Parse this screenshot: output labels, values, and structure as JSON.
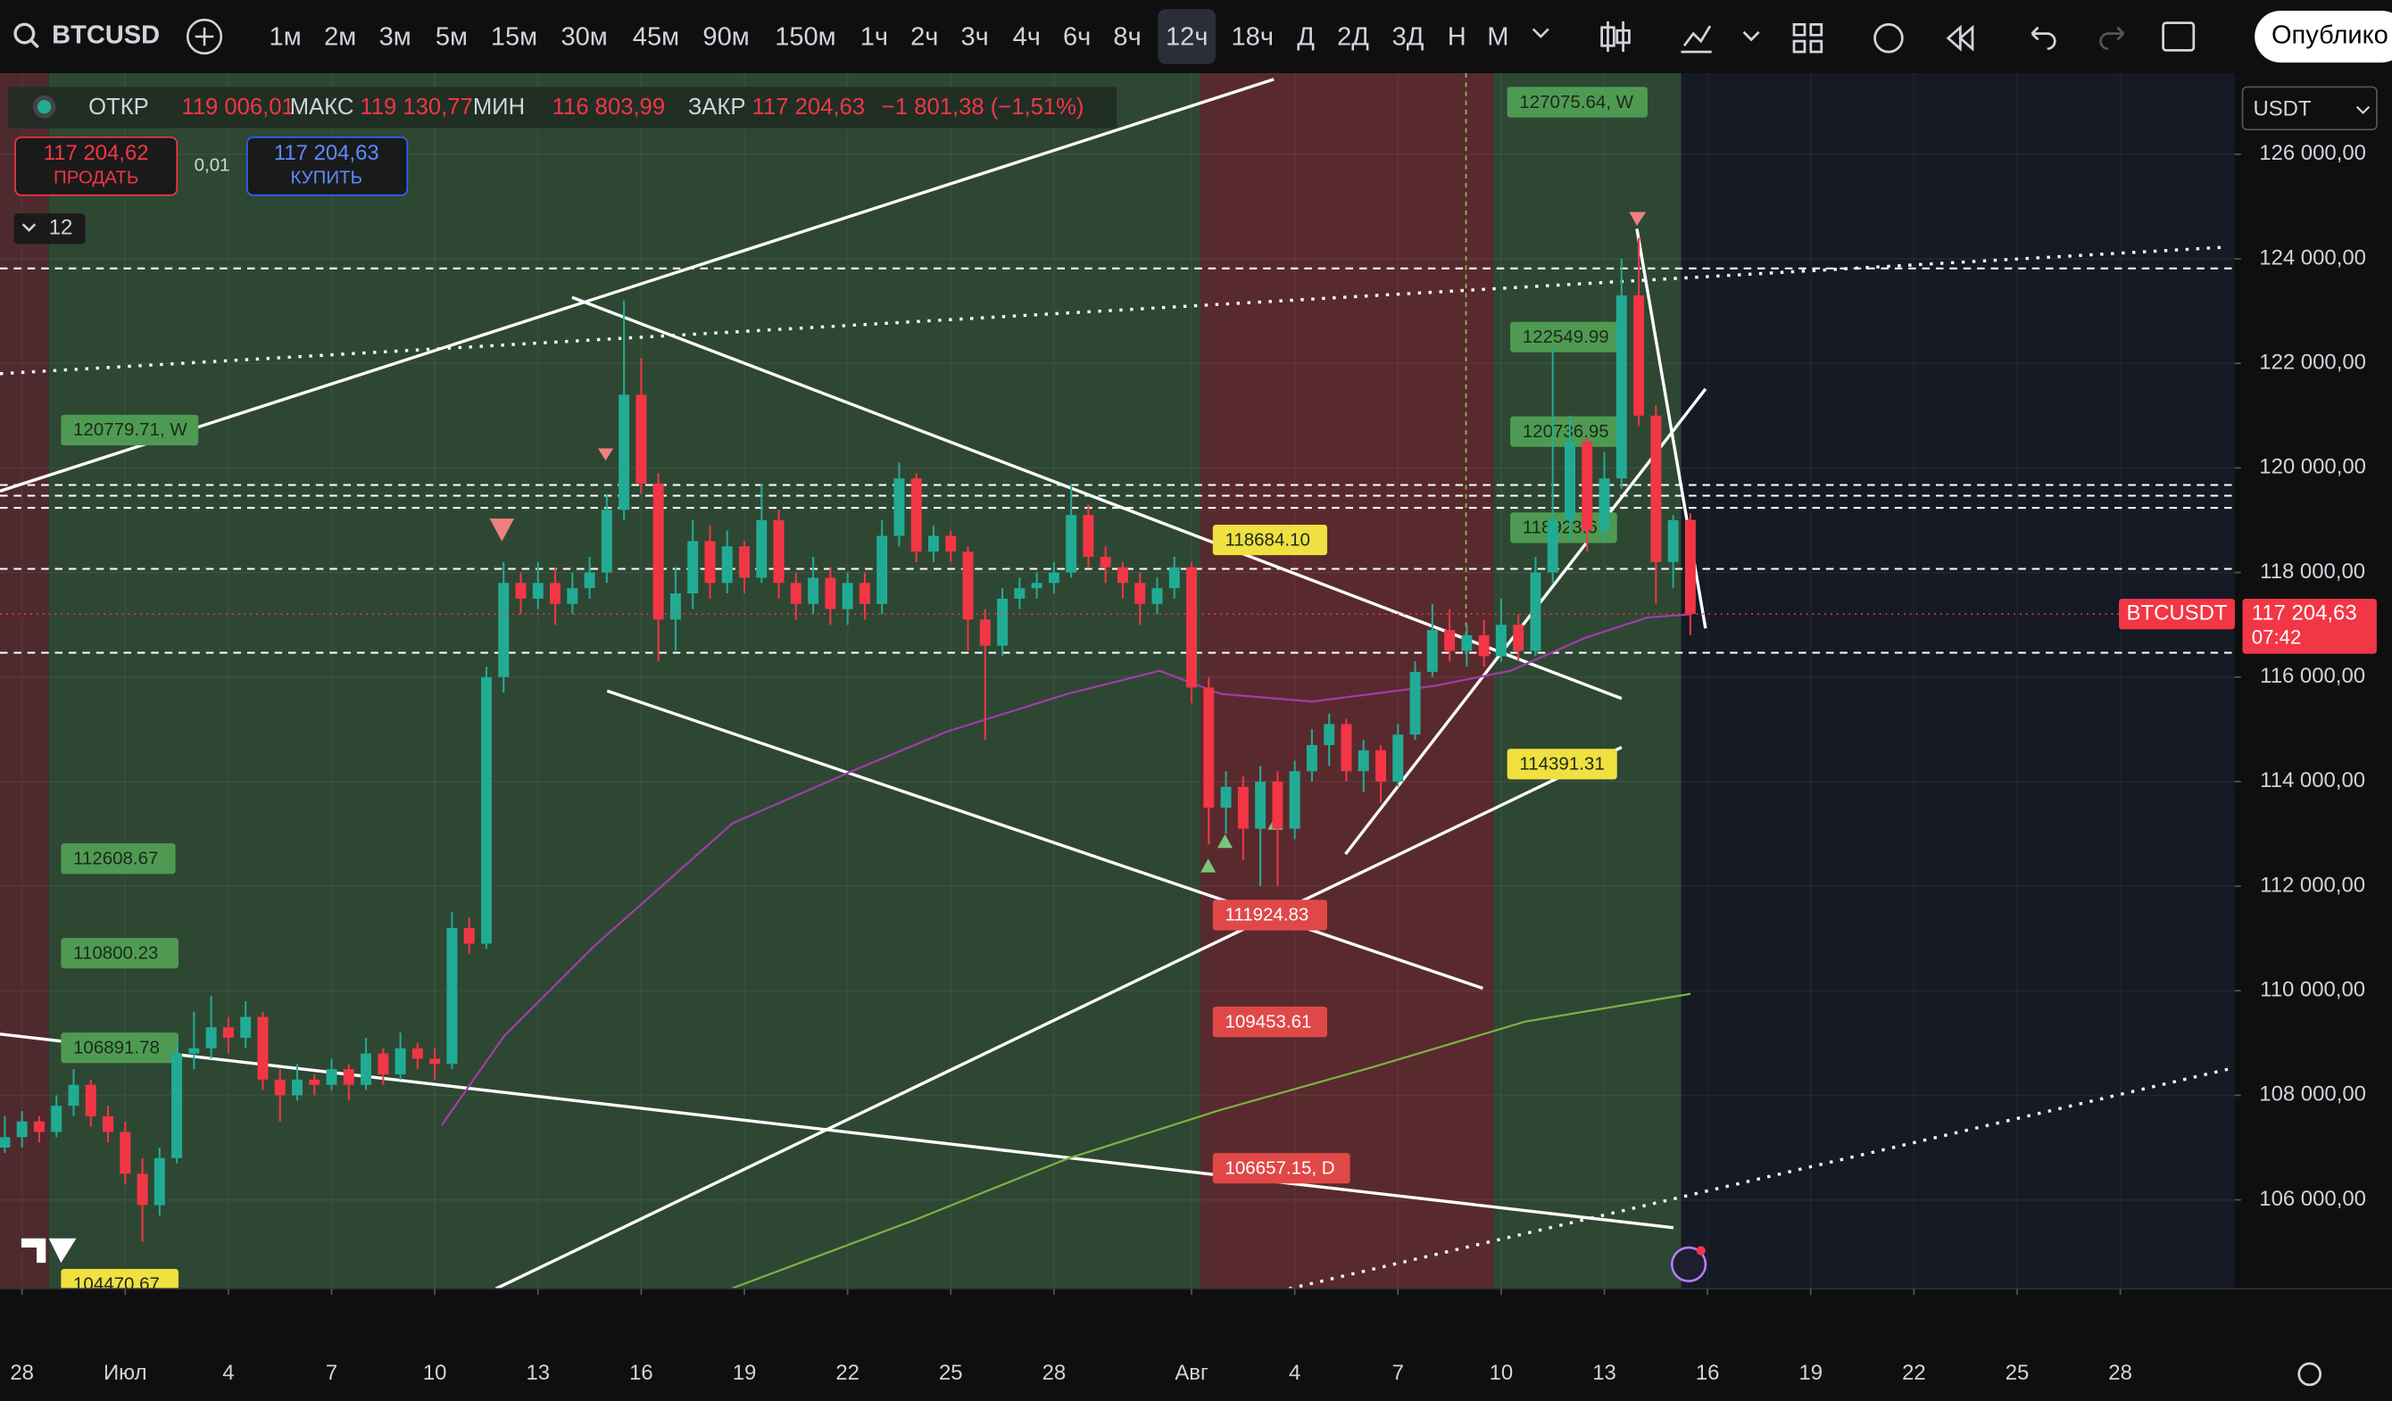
{
  "toolbar": {
    "symbol": "BTCUSD",
    "timeframes": [
      "1м",
      "2м",
      "3м",
      "5м",
      "15м",
      "30м",
      "45м",
      "90м",
      "150м",
      "1ч",
      "2ч",
      "3ч",
      "4ч",
      "6ч",
      "8ч",
      "12ч",
      "18ч",
      "Д",
      "2Д",
      "3Д",
      "Н",
      "М"
    ],
    "active": 15,
    "publish": "Опублико"
  },
  "legend": {
    "open_label": "ОТКР",
    "open": "119 006,01",
    "high_label": "МАКС",
    "high": "119 130,77",
    "low_label": "МИН",
    "low": "116 803,99",
    "close_label": "ЗАКР",
    "close": "117 204,63",
    "change": "−1 801,38 (−1,51%)"
  },
  "trade": {
    "sell_price": "117 204,62",
    "sell": "ПРОДАТЬ",
    "spread": "0,01",
    "buy_price": "117 204,63",
    "buy": "КУПИТЬ",
    "collapsed_count": "12"
  },
  "currency": "USDT",
  "chart_data": {
    "type": "candlestick",
    "up_color": "#22ab94",
    "down_color": "#f23645",
    "xlim": [
      -3.64,
      61.33
    ],
    "ylim": [
      104300,
      127550
    ],
    "xticks": [
      {
        "value": -3,
        "label": "28"
      },
      {
        "value": 0,
        "label": "Июл"
      },
      {
        "value": 3,
        "label": "4"
      },
      {
        "value": 6,
        "label": "7"
      },
      {
        "value": 9,
        "label": "10"
      },
      {
        "value": 12,
        "label": "13"
      },
      {
        "value": 15,
        "label": "16"
      },
      {
        "value": 18,
        "label": "19"
      },
      {
        "value": 21,
        "label": "22"
      },
      {
        "value": 24,
        "label": "25"
      },
      {
        "value": 27,
        "label": "28"
      },
      {
        "value": 31,
        "label": "Авг"
      },
      {
        "value": 34,
        "label": "4"
      },
      {
        "value": 37,
        "label": "7"
      },
      {
        "value": 40,
        "label": "10"
      },
      {
        "value": 43,
        "label": "13"
      },
      {
        "value": 46,
        "label": "16"
      },
      {
        "value": 49,
        "label": "19"
      },
      {
        "value": 52,
        "label": "22"
      },
      {
        "value": 55,
        "label": "25"
      },
      {
        "value": 58,
        "label": "28"
      }
    ],
    "yticks": [
      {
        "value": 126000,
        "label": "126 000,00"
      },
      {
        "value": 124000,
        "label": "124 000,00"
      },
      {
        "value": 122000,
        "label": "122 000,00"
      },
      {
        "value": 120000,
        "label": "120 000,00"
      },
      {
        "value": 118000,
        "label": "118 000,00"
      },
      {
        "value": 116000,
        "label": "116 000,00"
      },
      {
        "value": 114000,
        "label": "114 000,00"
      },
      {
        "value": 112000,
        "label": "112 000,00"
      },
      {
        "value": 110000,
        "label": "110 000,00"
      },
      {
        "value": 108000,
        "label": "108 000,00"
      },
      {
        "value": 106000,
        "label": "106 000,00"
      }
    ],
    "grid": true,
    "x": [
      -3.5,
      -3,
      -2.5,
      -2,
      -1.5,
      -1,
      -0.5,
      0,
      0.5,
      1,
      1.5,
      2,
      2.5,
      3,
      3.5,
      4,
      4.5,
      5,
      5.5,
      6,
      6.5,
      7,
      7.5,
      8,
      8.5,
      9,
      9.5,
      10,
      10.5,
      11,
      11.5,
      12,
      12.5,
      13,
      13.5,
      14,
      14.5,
      15,
      15.5,
      16,
      16.5,
      17,
      17.5,
      18,
      18.5,
      19,
      19.5,
      20,
      20.5,
      21,
      21.5,
      22,
      22.5,
      23,
      23.5,
      24,
      24.5,
      25,
      25.5,
      26,
      26.5,
      27,
      27.5,
      28,
      28.5,
      29,
      29.5,
      30,
      30.5,
      31,
      31.5,
      32,
      32.5,
      33,
      33.5,
      34,
      34.5,
      35,
      35.5,
      36,
      36.5,
      37,
      37.5,
      38,
      38.5,
      39,
      39.5,
      40,
      40.5,
      41,
      41.5,
      42,
      42.5,
      43,
      43.5,
      44,
      44.5,
      45,
      45.5
    ],
    "ohlc": [
      [
        107000,
        107600,
        106900,
        107200
      ],
      [
        107200,
        107700,
        107000,
        107500
      ],
      [
        107500,
        107600,
        107100,
        107300
      ],
      [
        107300,
        108000,
        107200,
        107800
      ],
      [
        107800,
        108500,
        107600,
        108200
      ],
      [
        108200,
        108300,
        107400,
        107600
      ],
      [
        107600,
        107800,
        107100,
        107300
      ],
      [
        107300,
        107500,
        106300,
        106500
      ],
      [
        106500,
        106800,
        105200,
        105900
      ],
      [
        105900,
        107000,
        105700,
        106800
      ],
      [
        106800,
        109000,
        106700,
        108800
      ],
      [
        108800,
        109600,
        108500,
        108900
      ],
      [
        108900,
        109900,
        108700,
        109300
      ],
      [
        109300,
        109500,
        108800,
        109100
      ],
      [
        109100,
        109800,
        108900,
        109500
      ],
      [
        109500,
        109600,
        108100,
        108300
      ],
      [
        108300,
        108500,
        107500,
        108000
      ],
      [
        108000,
        108600,
        107900,
        108300
      ],
      [
        108300,
        108400,
        108000,
        108200
      ],
      [
        108200,
        108700,
        108100,
        108500
      ],
      [
        108500,
        108600,
        107900,
        108200
      ],
      [
        108200,
        109100,
        108100,
        108800
      ],
      [
        108800,
        108900,
        108200,
        108400
      ],
      [
        108400,
        109200,
        108300,
        108900
      ],
      [
        108900,
        109000,
        108500,
        108700
      ],
      [
        108700,
        108900,
        108300,
        108600
      ],
      [
        108600,
        111500,
        108500,
        111200
      ],
      [
        111200,
        111400,
        110700,
        110900
      ],
      [
        110900,
        116200,
        110800,
        116000
      ],
      [
        116000,
        118200,
        115700,
        117800
      ],
      [
        117800,
        118000,
        117200,
        117500
      ],
      [
        117500,
        118200,
        117300,
        117800
      ],
      [
        117800,
        118100,
        117000,
        117400
      ],
      [
        117400,
        118000,
        117200,
        117700
      ],
      [
        117700,
        118300,
        117500,
        118000
      ],
      [
        118000,
        119500,
        117800,
        119200
      ],
      [
        119200,
        123200,
        119000,
        121400
      ],
      [
        121400,
        122100,
        119500,
        119700
      ],
      [
        119700,
        119900,
        116300,
        117100
      ],
      [
        117100,
        118100,
        116500,
        117600
      ],
      [
        117600,
        119000,
        117300,
        118600
      ],
      [
        118600,
        118900,
        117500,
        117800
      ],
      [
        117800,
        118800,
        117600,
        118500
      ],
      [
        118500,
        118600,
        117600,
        117900
      ],
      [
        117900,
        119700,
        117800,
        119000
      ],
      [
        119000,
        119200,
        117500,
        117800
      ],
      [
        117800,
        118000,
        117100,
        117400
      ],
      [
        117400,
        118300,
        117200,
        117900
      ],
      [
        117900,
        118100,
        117000,
        117300
      ],
      [
        117300,
        118000,
        117000,
        117800
      ],
      [
        117800,
        118000,
        117100,
        117400
      ],
      [
        117400,
        119000,
        117200,
        118700
      ],
      [
        118700,
        120100,
        118500,
        119800
      ],
      [
        119800,
        119900,
        118200,
        118400
      ],
      [
        118400,
        118900,
        118200,
        118700
      ],
      [
        118700,
        118800,
        118200,
        118400
      ],
      [
        118400,
        118500,
        116500,
        117100
      ],
      [
        117100,
        117300,
        114800,
        116600
      ],
      [
        116600,
        117700,
        116400,
        117500
      ],
      [
        117500,
        117900,
        117300,
        117700
      ],
      [
        117700,
        118000,
        117500,
        117800
      ],
      [
        117800,
        118200,
        117600,
        118000
      ],
      [
        118000,
        119700,
        117900,
        119100
      ],
      [
        119100,
        119300,
        118100,
        118300
      ],
      [
        118300,
        118500,
        117800,
        118100
      ],
      [
        118100,
        118200,
        117500,
        117800
      ],
      [
        117800,
        118000,
        117000,
        117400
      ],
      [
        117400,
        117900,
        117200,
        117700
      ],
      [
        117700,
        118300,
        117500,
        118100
      ],
      [
        118100,
        118200,
        115500,
        115800
      ],
      [
        115800,
        116000,
        112800,
        113500
      ],
      [
        113500,
        114200,
        113000,
        113900
      ],
      [
        113900,
        114100,
        112500,
        113100
      ],
      [
        113100,
        114300,
        112000,
        114000
      ],
      [
        114000,
        114200,
        112000,
        113100
      ],
      [
        113100,
        114400,
        112900,
        114200
      ],
      [
        114200,
        115000,
        114000,
        114700
      ],
      [
        114700,
        115300,
        114300,
        115100
      ],
      [
        115100,
        115200,
        114000,
        114200
      ],
      [
        114200,
        114800,
        113800,
        114600
      ],
      [
        114600,
        114700,
        113600,
        114000
      ],
      [
        114000,
        115100,
        113900,
        114900
      ],
      [
        114900,
        116300,
        114800,
        116100
      ],
      [
        116100,
        117400,
        116000,
        116900
      ],
      [
        116900,
        117300,
        116300,
        116500
      ],
      [
        116500,
        117000,
        116200,
        116800
      ],
      [
        116800,
        117100,
        116200,
        116400
      ],
      [
        116400,
        117500,
        116300,
        117000
      ],
      [
        117000,
        117200,
        116300,
        116500
      ],
      [
        116500,
        118300,
        116400,
        118000
      ],
      [
        118000,
        122300,
        117800,
        119000
      ],
      [
        119000,
        121000,
        118600,
        120500
      ],
      [
        120500,
        120600,
        118400,
        118800
      ],
      [
        118800,
        120300,
        118600,
        119800
      ],
      [
        119800,
        124000,
        119600,
        123300
      ],
      [
        123300,
        124400,
        120800,
        121000
      ],
      [
        121000,
        121200,
        117400,
        118200
      ],
      [
        118200,
        119100,
        117700,
        119000
      ],
      [
        119006.01,
        119130.77,
        116803.99,
        117204.63
      ]
    ],
    "indicators": [
      {
        "color": "#a23ca8",
        "x": [
          9.2,
          11,
          13.66,
          17.65,
          21.2,
          23.86,
          27.4,
          30.07,
          31.84,
          34.5,
          38.05,
          40.27,
          42.48,
          44.26,
          45.5
        ],
        "values": [
          107430,
          109120,
          110870,
          113200,
          114220,
          114950,
          115680,
          116120,
          115680,
          115530,
          115830,
          116120,
          116760,
          117140,
          117200
        ]
      },
      {
        "color": "#7cb342",
        "x": [
          17.65,
          22.97,
          27.4,
          31.84,
          36.27,
          40.7,
          45.5
        ],
        "values": [
          104310,
          105620,
          106790,
          107720,
          108540,
          109410,
          109940
        ]
      }
    ],
    "last_price": {
      "symbol": "BTCUSDT",
      "value": 117204.63,
      "label": "117 204,63",
      "countdown": "07:42",
      "color": "#f23645"
    },
    "flags": [
      {
        "label": "127075.64, W",
        "color": "#4f9a52"
      },
      {
        "label": "122549.99",
        "color": "#4f9a52"
      },
      {
        "label": "120736.95",
        "color": "#4f9a52"
      },
      {
        "label": "118923.6",
        "color": "#4f9a52"
      },
      {
        "label": "118684.10",
        "color": "#f0e040"
      },
      {
        "label": "114391.31",
        "color": "#f0e040"
      },
      {
        "label": "111924.83",
        "color": "#e04848"
      },
      {
        "label": "109453.61",
        "color": "#e04848"
      },
      {
        "label": "106657.15, D",
        "color": "#e04848"
      },
      {
        "label": "120779.71, W",
        "color": "#4f9a52"
      },
      {
        "label": "112608.67",
        "color": "#4f9a52"
      },
      {
        "label": "110800.23",
        "color": "#4f9a52"
      },
      {
        "label": "106891.78",
        "color": "#4f9a52"
      },
      {
        "label": "104470.67",
        "color": "#f0e040"
      }
    ]
  }
}
